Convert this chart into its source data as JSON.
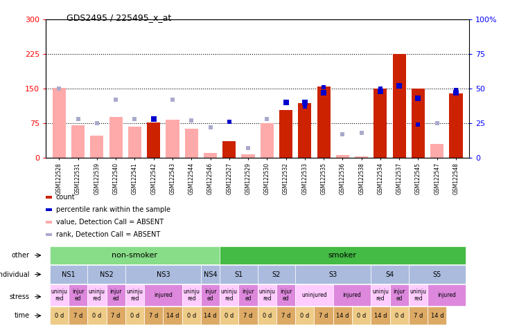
{
  "title": "GDS2495 / 225495_x_at",
  "samples": [
    "GSM122528",
    "GSM122531",
    "GSM122539",
    "GSM122540",
    "GSM122541",
    "GSM122542",
    "GSM122543",
    "GSM122544",
    "GSM122546",
    "GSM122527",
    "GSM122529",
    "GSM122530",
    "GSM122532",
    "GSM122533",
    "GSM122535",
    "GSM122536",
    "GSM122538",
    "GSM122534",
    "GSM122537",
    "GSM122545",
    "GSM122547",
    "GSM122548"
  ],
  "bar_values": [
    152,
    70,
    47,
    88,
    67,
    76,
    82,
    63,
    10,
    35,
    7,
    75,
    103,
    118,
    155,
    5,
    3,
    150,
    225,
    150,
    30,
    140
  ],
  "bar_absent": [
    true,
    true,
    true,
    true,
    true,
    false,
    true,
    true,
    true,
    false,
    true,
    true,
    false,
    false,
    false,
    true,
    true,
    false,
    false,
    false,
    true,
    false
  ],
  "rank_values_pct": [
    50,
    28,
    25,
    42,
    28,
    28,
    42,
    27,
    22,
    26,
    7,
    28,
    40,
    37,
    51,
    17,
    18,
    50,
    52,
    24,
    25,
    49
  ],
  "rank_absent": [
    true,
    true,
    true,
    true,
    true,
    false,
    true,
    true,
    true,
    false,
    true,
    true,
    false,
    false,
    false,
    true,
    true,
    false,
    false,
    false,
    true,
    false
  ],
  "percentile_values_pct": [
    null,
    null,
    null,
    null,
    null,
    28,
    null,
    null,
    null,
    null,
    null,
    null,
    40,
    40,
    47,
    null,
    null,
    48,
    52,
    43,
    null,
    47
  ],
  "ylim_left": [
    0,
    300
  ],
  "ylim_right": [
    0,
    100
  ],
  "yticks_left": [
    0,
    75,
    150,
    225,
    300
  ],
  "yticks_right": [
    0,
    25,
    50,
    75,
    100
  ],
  "hlines": [
    75,
    150,
    225
  ],
  "bar_color_present": "#cc2200",
  "bar_color_absent": "#ffaaaa",
  "rank_color_present": "#0000cc",
  "rank_color_absent": "#aaaacc",
  "plot_bg": "#ffffff",
  "fig_bg": "#ffffff",
  "other_groups": [
    {
      "text": "non-smoker",
      "start": 0,
      "end": 8,
      "color": "#88dd88"
    },
    {
      "text": "smoker",
      "start": 9,
      "end": 21,
      "color": "#44bb44"
    }
  ],
  "individual_groups": [
    {
      "text": "NS1",
      "start": 0,
      "end": 1,
      "color": "#aabbdd"
    },
    {
      "text": "NS2",
      "start": 2,
      "end": 3,
      "color": "#aabbdd"
    },
    {
      "text": "NS3",
      "start": 4,
      "end": 7,
      "color": "#aabbdd"
    },
    {
      "text": "NS4",
      "start": 8,
      "end": 8,
      "color": "#aabbdd"
    },
    {
      "text": "S1",
      "start": 9,
      "end": 10,
      "color": "#aabbdd"
    },
    {
      "text": "S2",
      "start": 11,
      "end": 12,
      "color": "#aabbdd"
    },
    {
      "text": "S3",
      "start": 13,
      "end": 16,
      "color": "#aabbdd"
    },
    {
      "text": "S4",
      "start": 17,
      "end": 18,
      "color": "#aabbdd"
    },
    {
      "text": "S5",
      "start": 19,
      "end": 21,
      "color": "#aabbdd"
    }
  ],
  "stress_map": [
    [
      0,
      1,
      "uninju\nred",
      "#ffccff"
    ],
    [
      1,
      1,
      "injur\ned",
      "#dd88dd"
    ],
    [
      2,
      1,
      "uninju\nred",
      "#ffccff"
    ],
    [
      3,
      1,
      "injur\ned",
      "#dd88dd"
    ],
    [
      4,
      1,
      "uninju\nred",
      "#ffccff"
    ],
    [
      5,
      2,
      "injured",
      "#dd88dd"
    ],
    [
      7,
      1,
      "uninju\nred",
      "#ffccff"
    ],
    [
      8,
      1,
      "injur\ned",
      "#dd88dd"
    ],
    [
      9,
      1,
      "uninju\nred",
      "#ffccff"
    ],
    [
      10,
      1,
      "injur\ned",
      "#dd88dd"
    ],
    [
      11,
      1,
      "uninju\nred",
      "#ffccff"
    ],
    [
      12,
      1,
      "injur\ned",
      "#dd88dd"
    ],
    [
      13,
      2,
      "uninjured",
      "#ffccff"
    ],
    [
      15,
      2,
      "injured",
      "#dd88dd"
    ],
    [
      17,
      1,
      "uninju\nred",
      "#ffccff"
    ],
    [
      18,
      1,
      "injur\ned",
      "#dd88dd"
    ],
    [
      19,
      1,
      "uninju\nred",
      "#ffccff"
    ],
    [
      20,
      2,
      "injured",
      "#dd88dd"
    ]
  ],
  "time_cells": [
    [
      0,
      1,
      "0 d",
      "#eecc88"
    ],
    [
      1,
      1,
      "7 d",
      "#ddaa66"
    ],
    [
      2,
      1,
      "0 d",
      "#eecc88"
    ],
    [
      3,
      1,
      "7 d",
      "#ddaa66"
    ],
    [
      4,
      1,
      "0 d",
      "#eecc88"
    ],
    [
      5,
      1,
      "7 d",
      "#ddaa66"
    ],
    [
      6,
      1,
      "14 d",
      "#ddaa66"
    ],
    [
      7,
      1,
      "0 d",
      "#eecc88"
    ],
    [
      8,
      1,
      "14 d",
      "#ddaa66"
    ],
    [
      9,
      1,
      "0 d",
      "#eecc88"
    ],
    [
      10,
      1,
      "7 d",
      "#ddaa66"
    ],
    [
      11,
      1,
      "0 d",
      "#eecc88"
    ],
    [
      12,
      1,
      "7 d",
      "#ddaa66"
    ],
    [
      13,
      1,
      "0 d",
      "#eecc88"
    ],
    [
      14,
      1,
      "7 d",
      "#ddaa66"
    ],
    [
      15,
      1,
      "14 d",
      "#ddaa66"
    ],
    [
      16,
      1,
      "0 d",
      "#eecc88"
    ],
    [
      17,
      1,
      "14 d",
      "#ddaa66"
    ],
    [
      18,
      1,
      "0 d",
      "#eecc88"
    ],
    [
      19,
      1,
      "7 d",
      "#ddaa66"
    ],
    [
      20,
      1,
      "14 d",
      "#ddaa66"
    ]
  ],
  "legend_items": [
    {
      "color": "#cc2200",
      "label": "count"
    },
    {
      "color": "#0000cc",
      "label": "percentile rank within the sample"
    },
    {
      "color": "#ffaaaa",
      "label": "value, Detection Call = ABSENT"
    },
    {
      "color": "#aaaacc",
      "label": "rank, Detection Call = ABSENT"
    }
  ]
}
